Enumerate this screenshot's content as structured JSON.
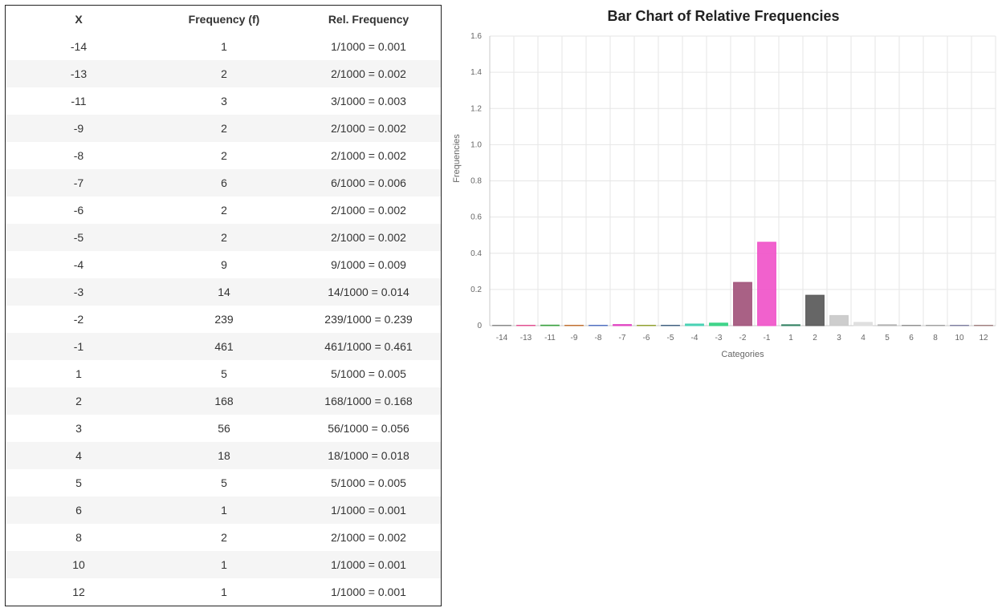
{
  "table": {
    "headers": [
      "X",
      "Frequency (f)",
      "Rel. Frequency"
    ],
    "rows": [
      [
        "-14",
        "1",
        "1/1000 = 0.001"
      ],
      [
        "-13",
        "2",
        "2/1000 = 0.002"
      ],
      [
        "-11",
        "3",
        "3/1000 = 0.003"
      ],
      [
        "-9",
        "2",
        "2/1000 = 0.002"
      ],
      [
        "-8",
        "2",
        "2/1000 = 0.002"
      ],
      [
        "-7",
        "6",
        "6/1000 = 0.006"
      ],
      [
        "-6",
        "2",
        "2/1000 = 0.002"
      ],
      [
        "-5",
        "2",
        "2/1000 = 0.002"
      ],
      [
        "-4",
        "9",
        "9/1000 = 0.009"
      ],
      [
        "-3",
        "14",
        "14/1000 = 0.014"
      ],
      [
        "-2",
        "239",
        "239/1000 = 0.239"
      ],
      [
        "-1",
        "461",
        "461/1000 = 0.461"
      ],
      [
        "1",
        "5",
        "5/1000 = 0.005"
      ],
      [
        "2",
        "168",
        "168/1000 = 0.168"
      ],
      [
        "3",
        "56",
        "56/1000 = 0.056"
      ],
      [
        "4",
        "18",
        "18/1000 = 0.018"
      ],
      [
        "5",
        "5",
        "5/1000 = 0.005"
      ],
      [
        "6",
        "1",
        "1/1000 = 0.001"
      ],
      [
        "8",
        "2",
        "2/1000 = 0.002"
      ],
      [
        "10",
        "1",
        "1/1000 = 0.001"
      ],
      [
        "12",
        "1",
        "1/1000 = 0.001"
      ]
    ]
  },
  "chart_data": {
    "type": "bar",
    "title": "Bar Chart of Relative Frequencies",
    "xlabel": "Categories",
    "ylabel": "Frequencies",
    "categories": [
      "-14",
      "-13",
      "-11",
      "-9",
      "-8",
      "-7",
      "-6",
      "-5",
      "-4",
      "-3",
      "-2",
      "-1",
      "1",
      "2",
      "3",
      "4",
      "5",
      "6",
      "8",
      "10",
      "12"
    ],
    "values": [
      0.001,
      0.002,
      0.003,
      0.002,
      0.002,
      0.006,
      0.002,
      0.002,
      0.009,
      0.014,
      0.239,
      0.461,
      0.005,
      0.168,
      0.056,
      0.018,
      0.005,
      0.001,
      0.002,
      0.001,
      0.001
    ],
    "colors": [
      "#888888",
      "#e05090",
      "#3aa040",
      "#c07030",
      "#5070c0",
      "#e040c0",
      "#90a030",
      "#406080",
      "#40d0b0",
      "#30d080",
      "#a05078",
      "#f050c8",
      "#308060",
      "#555555",
      "#c8c8c8",
      "#dddddd",
      "#b0b0b0",
      "#909090",
      "#a0a0a0",
      "#8080a0",
      "#a08080"
    ],
    "ylim": [
      0,
      1.6
    ],
    "yticks": [
      "0",
      "0.2",
      "0.4",
      "0.6",
      "0.8",
      "1.0",
      "1.2",
      "1.4",
      "1.6"
    ],
    "grid": true,
    "legend": "none"
  }
}
